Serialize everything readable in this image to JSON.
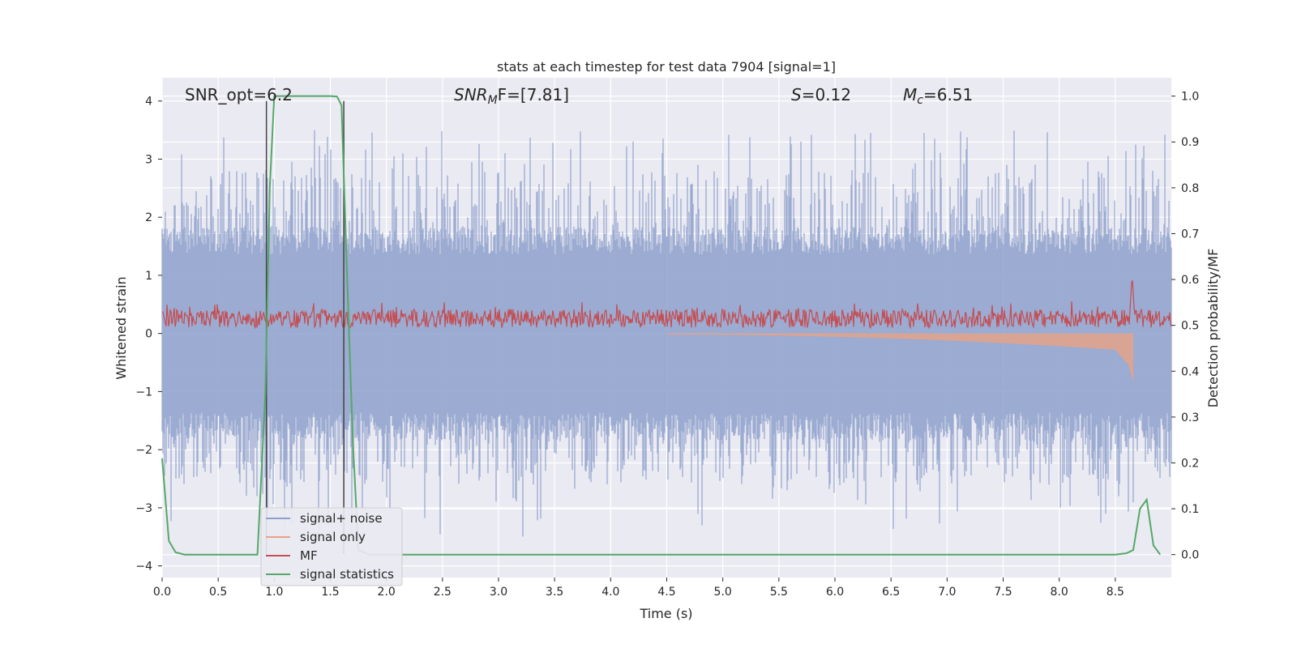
{
  "chart_data": {
    "type": "line",
    "title": "stats at each timestep for test data 7904 [signal=1]",
    "xlabel": "Time (s)",
    "ylabel": "Whitened strain",
    "ylabel_right": "Detection probability/MF",
    "xlim": [
      0.0,
      9.0
    ],
    "ylim": [
      -4.2,
      4.4
    ],
    "ylim_right": [
      -0.05,
      1.04
    ],
    "x_ticks": [
      "0.0",
      "0.5",
      "1.0",
      "1.5",
      "2.0",
      "2.5",
      "3.0",
      "3.5",
      "4.0",
      "4.5",
      "5.0",
      "5.5",
      "6.0",
      "6.5",
      "7.0",
      "7.5",
      "8.0",
      "8.5"
    ],
    "y_ticks": [
      "4",
      "3",
      "2",
      "1",
      "0",
      "−1",
      "−2",
      "−3",
      "−4"
    ],
    "y_right_ticks": [
      "1.0",
      "0.9",
      "0.8",
      "0.7",
      "0.6",
      "0.5",
      "0.4",
      "0.3",
      "0.2",
      "0.1",
      "0.0"
    ],
    "grid": true,
    "legend_position": "lower-left",
    "annotations": {
      "snr_opt": "SNR_opt=6.2",
      "snr_mf_base": "SNR",
      "snr_mf_sub": "M",
      "snr_mf_rest": "F=[7.81]",
      "s_sym": "S",
      "s_val": "=0.12",
      "mc_base": "M",
      "mc_sub": "c",
      "mc_val": "=6.51"
    },
    "vlines_x": [
      0.93,
      1.62
    ],
    "series": [
      {
        "name": "signal+ noise",
        "color": "#8da0cb",
        "axis": "left",
        "description_values": "whitened strain noise spanning roughly -3.5 to 3.5, occasional spikes to 4",
        "envelope_x": [
          0.0,
          9.0
        ],
        "envelope_typical": [
          -1.6,
          1.6
        ],
        "envelope_peak": [
          -3.5,
          3.5
        ]
      },
      {
        "name": "signal only",
        "color": "#e8a284",
        "axis": "left",
        "chirp_x": [
          4.5,
          8.5,
          8.62,
          8.66
        ],
        "chirp_amplitude": [
          0.02,
          0.28,
          0.55,
          0.85
        ]
      },
      {
        "name": "MF",
        "color": "#c44e52",
        "axis": "right",
        "baseline": 0.515,
        "spread": 0.02,
        "peak_x": 8.65,
        "peak_y": 0.61
      },
      {
        "name": "signal statistics",
        "color": "#55a868",
        "axis": "right",
        "x": [
          0.0,
          0.06,
          0.12,
          0.2,
          0.5,
          0.85,
          0.92,
          0.96,
          1.0,
          1.1,
          1.3,
          1.5,
          1.56,
          1.6,
          1.65,
          1.7,
          1.75,
          1.85,
          2.0,
          4.0,
          6.0,
          8.0,
          8.5,
          8.6,
          8.66,
          8.72,
          8.78,
          8.84,
          8.9
        ],
        "y": [
          0.21,
          0.03,
          0.005,
          0.0,
          0.0,
          0.0,
          0.35,
          0.8,
          1.0,
          1.0,
          1.0,
          1.0,
          0.999,
          0.98,
          0.6,
          0.25,
          0.01,
          0.0,
          0.0,
          0.0,
          0.0,
          0.0,
          0.0,
          0.003,
          0.01,
          0.1,
          0.12,
          0.02,
          0.0
        ]
      }
    ]
  }
}
